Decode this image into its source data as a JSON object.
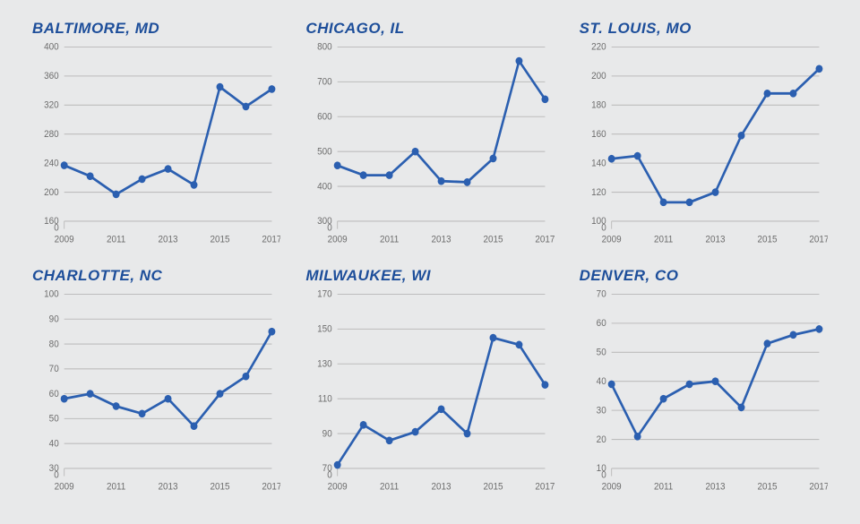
{
  "background_color": "#e8e9ea",
  "title_color": "#1d4e9a",
  "title_fontsize": 17,
  "axis_text_color": "#6d6d6d",
  "axis_fontsize": 10,
  "grid_color": "#bdbdbd",
  "x_categories_years": [
    2009,
    2010,
    2011,
    2012,
    2013,
    2014,
    2015,
    2016,
    2017
  ],
  "x_tick_labels": [
    "2009",
    "2011",
    "2013",
    "2015",
    "2017"
  ],
  "x_tick_years": [
    2009,
    2011,
    2013,
    2015,
    2017
  ],
  "panels": [
    {
      "title": "BALTIMORE, MD",
      "type": "line",
      "line_color": "#2b5fb0",
      "marker_color": "#2b5fb0",
      "marker_radius": 4,
      "ylim_broken_zero": true,
      "ymin": 160,
      "ymax": 400,
      "ytick_step": 40,
      "values": [
        237,
        222,
        197,
        218,
        232,
        210,
        345,
        318,
        342
      ]
    },
    {
      "title": "CHICAGO, IL",
      "type": "line",
      "line_color": "#2b5fb0",
      "marker_color": "#2b5fb0",
      "marker_radius": 4,
      "ylim_broken_zero": true,
      "ymin": 300,
      "ymax": 800,
      "ytick_step": 100,
      "values": [
        460,
        432,
        432,
        500,
        415,
        412,
        480,
        760,
        650
      ]
    },
    {
      "title": "ST. LOUIS, MO",
      "type": "line",
      "line_color": "#2b5fb0",
      "marker_color": "#2b5fb0",
      "marker_radius": 4,
      "ylim_broken_zero": true,
      "ymin": 100,
      "ymax": 220,
      "ytick_step": 20,
      "values": [
        143,
        145,
        113,
        113,
        120,
        159,
        188,
        188,
        205
      ]
    },
    {
      "title": "CHARLOTTE, NC",
      "type": "line",
      "line_color": "#2b5fb0",
      "marker_color": "#2b5fb0",
      "marker_radius": 4,
      "ylim_broken_zero": true,
      "ymin": 30,
      "ymax": 100,
      "ytick_step": 10,
      "values": [
        58,
        60,
        55,
        52,
        58,
        47,
        60,
        67,
        85
      ]
    },
    {
      "title": "MILWAUKEE, WI",
      "type": "line",
      "line_color": "#2b5fb0",
      "marker_color": "#2b5fb0",
      "marker_radius": 4,
      "ylim_broken_zero": true,
      "ymin": 70,
      "ymax": 170,
      "ytick_step": 20,
      "values": [
        72,
        95,
        86,
        91,
        104,
        90,
        145,
        141,
        118
      ]
    },
    {
      "title": "DENVER, CO",
      "type": "line",
      "line_color": "#2b5fb0",
      "marker_color": "#2b5fb0",
      "marker_radius": 4,
      "ylim_broken_zero": true,
      "ymin": 10,
      "ymax": 70,
      "ytick_step": 10,
      "values": [
        39,
        21,
        34,
        39,
        40,
        31,
        53,
        56,
        58
      ]
    }
  ]
}
